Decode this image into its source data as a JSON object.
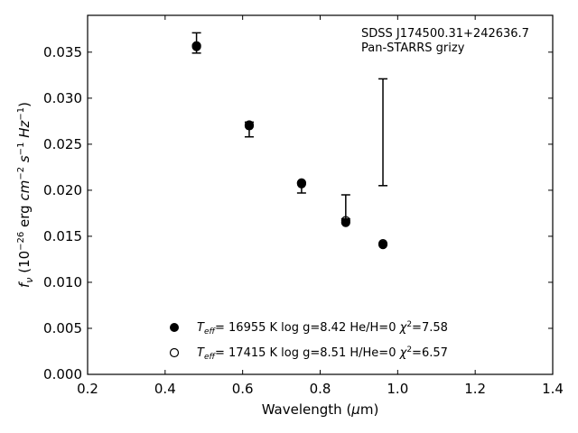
{
  "chart_data": {
    "type": "scatter",
    "xlabel": "Wavelength (μm)",
    "ylabel": "f_ν (10^-26 erg cm^-2 s^-1 Hz^-1)",
    "xlim": [
      0.2,
      1.4
    ],
    "ylim": [
      0.0,
      0.039
    ],
    "x_ticks": [
      "0.2",
      "0.4",
      "0.6",
      "0.8",
      "1.0",
      "1.2",
      "1.4"
    ],
    "y_ticks": [
      "0.000",
      "0.005",
      "0.010",
      "0.015",
      "0.020",
      "0.025",
      "0.030",
      "0.035"
    ],
    "grid": false,
    "annotation": [
      "SDSS J174500.31+242636.7",
      "Pan-STARRS grizy"
    ],
    "observed": {
      "x": [
        0.481,
        0.617,
        0.752,
        0.866,
        0.962
      ],
      "y_low": [
        0.0349,
        0.0258,
        0.0197,
        0.0169,
        0.0205
      ],
      "y_high": [
        0.0371,
        0.0274,
        0.0208,
        0.0195,
        0.0321
      ]
    },
    "series": [
      {
        "name": "T_eff= 16955 K  log g=8.42  He/H=0  χ²=7.58",
        "marker": "filled-circle",
        "x": [
          0.481,
          0.617,
          0.752,
          0.866,
          0.962
        ],
        "y": [
          0.0356,
          0.027,
          0.0207,
          0.0165,
          0.0141
        ]
      },
      {
        "name": "T_eff= 17415 K  log g=8.51  H/He=0  χ²=6.57",
        "marker": "open-circle",
        "x": [
          0.481,
          0.617,
          0.752,
          0.866,
          0.962
        ],
        "y": [
          0.0357,
          0.0271,
          0.0208,
          0.0167,
          0.0142
        ]
      }
    ],
    "legend_location": "lower-center",
    "legend": [
      {
        "teff": "16955",
        "logg": "8.42",
        "comp": "He/H=0",
        "chi2": "7.58"
      },
      {
        "teff": "17415",
        "logg": "8.51",
        "comp": "H/He=0",
        "chi2": "6.57"
      }
    ]
  }
}
